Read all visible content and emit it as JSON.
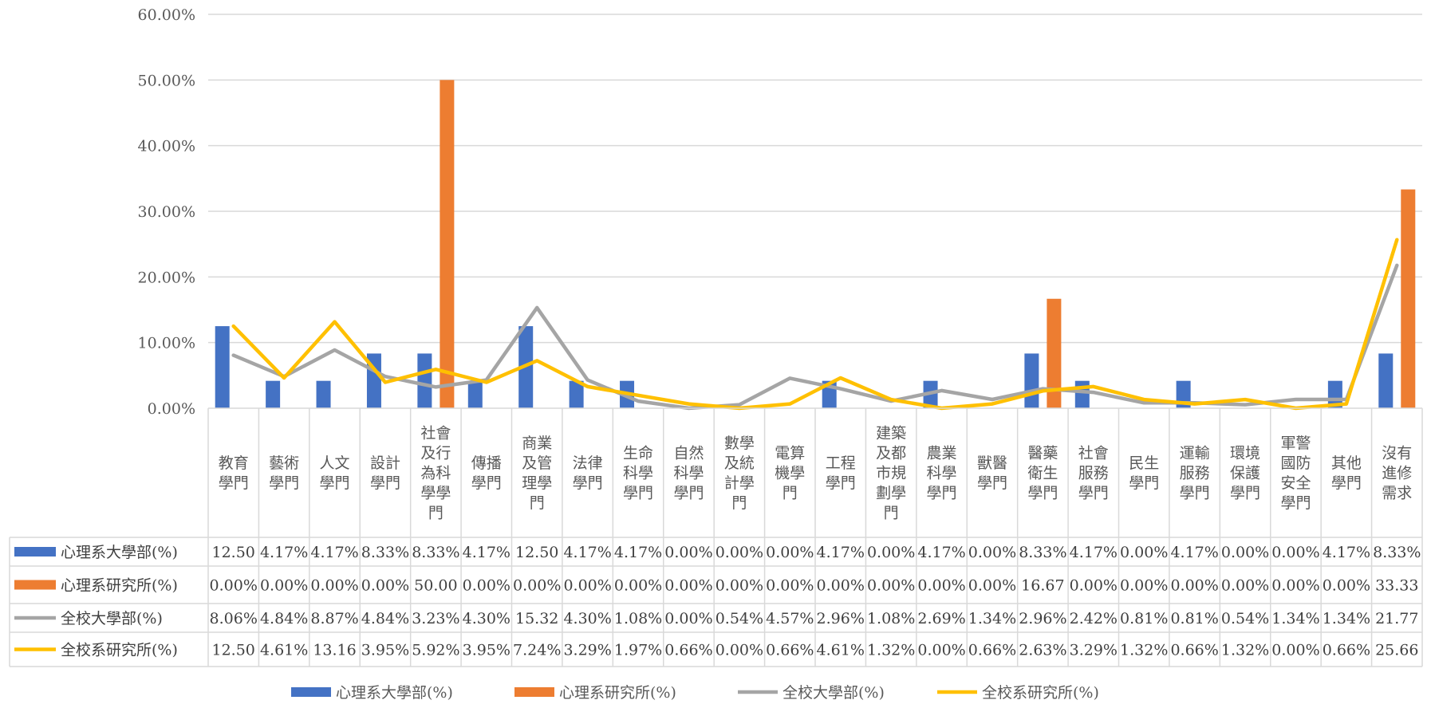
{
  "chart_data": {
    "type": "bar",
    "categories": [
      "教育學門",
      "藝術學門",
      "人文學門",
      "設計學門",
      "社會及行為科學學門",
      "傳播學門",
      "商業及管理學門",
      "法律學門",
      "生命科學學門",
      "自然科學學門",
      "數學及統計學門",
      "電算機學門",
      "工程學門",
      "建築及都市規劃學門",
      "農業科學學門",
      "獸醫學門",
      "醫藥衛生學門",
      "社會服務學門",
      "民生學門",
      "運輸服務學門",
      "環境保護學門",
      "軍警國防安全學門",
      "其他學門",
      "沒有進修需求"
    ],
    "category_lines": [
      [
        "教育",
        "學門"
      ],
      [
        "藝術",
        "學門"
      ],
      [
        "人文",
        "學門"
      ],
      [
        "設計",
        "學門"
      ],
      [
        "社會",
        "及行",
        "為科",
        "學學",
        "門"
      ],
      [
        "傳播",
        "學門"
      ],
      [
        "商業",
        "及管",
        "理學",
        "門"
      ],
      [
        "法律",
        "學門"
      ],
      [
        "生命",
        "科學",
        "學門"
      ],
      [
        "自然",
        "科學",
        "學門"
      ],
      [
        "數學",
        "及統",
        "計學",
        "門"
      ],
      [
        "電算",
        "機學",
        "門"
      ],
      [
        "工程",
        "學門"
      ],
      [
        "建築",
        "及都",
        "市規",
        "劃學",
        "門"
      ],
      [
        "農業",
        "科學",
        "學門"
      ],
      [
        "獸醫",
        "學門"
      ],
      [
        "醫藥",
        "衛生",
        "學門"
      ],
      [
        "社會",
        "服務",
        "學門"
      ],
      [
        "民生",
        "學門"
      ],
      [
        "運輸",
        "服務",
        "學門"
      ],
      [
        "環境",
        "保護",
        "學門"
      ],
      [
        "軍警",
        "國防",
        "安全",
        "學門"
      ],
      [
        "其他",
        "學門"
      ],
      [
        "沒有",
        "進修",
        "需求"
      ]
    ],
    "ylim": [
      0,
      60
    ],
    "yticks": [
      "0.00%",
      "10.00%",
      "20.00%",
      "30.00%",
      "40.00%",
      "50.00%",
      "60.00%"
    ],
    "grid": true,
    "legend_position": "bottom",
    "series": [
      {
        "name": "心理系大學部(%)",
        "kind": "bar",
        "color": "#4472C4",
        "values": [
          12.5,
          4.17,
          4.17,
          8.33,
          8.33,
          4.17,
          12.5,
          4.17,
          4.17,
          0.0,
          0.0,
          0.0,
          4.17,
          0.0,
          4.17,
          0.0,
          8.33,
          4.17,
          0.0,
          4.17,
          0.0,
          0.0,
          4.17,
          8.33
        ],
        "labels": [
          "12.50",
          "4.17%",
          "4.17%",
          "8.33%",
          "8.33%",
          "4.17%",
          "12.50",
          "4.17%",
          "4.17%",
          "0.00%",
          "0.00%",
          "0.00%",
          "4.17%",
          "0.00%",
          "4.17%",
          "0.00%",
          "8.33%",
          "4.17%",
          "0.00%",
          "4.17%",
          "0.00%",
          "0.00%",
          "4.17%",
          "8.33%"
        ]
      },
      {
        "name": "心理系研究所(%)",
        "kind": "bar",
        "color": "#ED7D31",
        "values": [
          0.0,
          0.0,
          0.0,
          0.0,
          50.0,
          0.0,
          0.0,
          0.0,
          0.0,
          0.0,
          0.0,
          0.0,
          0.0,
          0.0,
          0.0,
          0.0,
          16.67,
          0.0,
          0.0,
          0.0,
          0.0,
          0.0,
          0.0,
          33.33
        ],
        "labels": [
          "0.00%",
          "0.00%",
          "0.00%",
          "0.00%",
          "50.00",
          "0.00%",
          "0.00%",
          "0.00%",
          "0.00%",
          "0.00%",
          "0.00%",
          "0.00%",
          "0.00%",
          "0.00%",
          "0.00%",
          "0.00%",
          "16.67",
          "0.00%",
          "0.00%",
          "0.00%",
          "0.00%",
          "0.00%",
          "0.00%",
          "33.33"
        ]
      },
      {
        "name": "全校大學部(%)",
        "kind": "line",
        "color": "#A5A5A5",
        "values": [
          8.06,
          4.84,
          8.87,
          4.84,
          3.23,
          4.3,
          15.32,
          4.3,
          1.08,
          0.0,
          0.54,
          4.57,
          2.96,
          1.08,
          2.69,
          1.34,
          2.96,
          2.42,
          0.81,
          0.81,
          0.54,
          1.34,
          1.34,
          21.77
        ],
        "labels": [
          "8.06%",
          "4.84%",
          "8.87%",
          "4.84%",
          "3.23%",
          "4.30%",
          "15.32",
          "4.30%",
          "1.08%",
          "0.00%",
          "0.54%",
          "4.57%",
          "2.96%",
          "1.08%",
          "2.69%",
          "1.34%",
          "2.96%",
          "2.42%",
          "0.81%",
          "0.81%",
          "0.54%",
          "1.34%",
          "1.34%",
          "21.77"
        ]
      },
      {
        "name": "全校系研究所(%)",
        "kind": "line",
        "color": "#FFC000",
        "values": [
          12.5,
          4.61,
          13.16,
          3.95,
          5.92,
          3.95,
          7.24,
          3.29,
          1.97,
          0.66,
          0.0,
          0.66,
          4.61,
          1.32,
          0.0,
          0.66,
          2.63,
          3.29,
          1.32,
          0.66,
          1.32,
          0.0,
          0.66,
          25.66
        ],
        "labels": [
          "12.50",
          "4.61%",
          "13.16",
          "3.95%",
          "5.92%",
          "3.95%",
          "7.24%",
          "3.29%",
          "1.97%",
          "0.66%",
          "0.00%",
          "0.66%",
          "4.61%",
          "1.32%",
          "0.00%",
          "0.66%",
          "2.63%",
          "3.29%",
          "1.32%",
          "0.66%",
          "1.32%",
          "0.00%",
          "0.66%",
          "25.66"
        ]
      }
    ]
  }
}
